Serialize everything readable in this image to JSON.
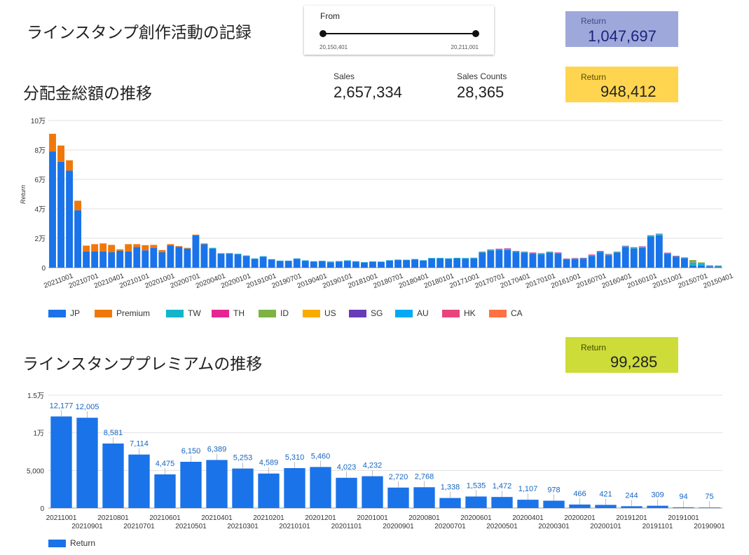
{
  "header": {
    "title": "ラインスタンプ創作活動の記録"
  },
  "date_slider": {
    "label": "From",
    "min_value": "20,150,401",
    "max_value": "20,211,001"
  },
  "return_total": {
    "label": "Return",
    "value": "1,047,697",
    "bg": "#9FA8DA"
  },
  "section1": {
    "title": "分配金総額の推移"
  },
  "sales": {
    "label": "Sales",
    "value": "2,657,334"
  },
  "sales_counts": {
    "label": "Sales Counts",
    "value": "28,365"
  },
  "return_sales": {
    "label": "Return",
    "value": "948,412",
    "bg": "#FFD54F"
  },
  "section2": {
    "title": "ラインスタンププレミアムの推移"
  },
  "return_premium": {
    "label": "Return",
    "value": "99,285",
    "bg": "#CDDC39"
  },
  "chart_data": [
    {
      "type": "bar",
      "stacked": true,
      "ylabel": "Return",
      "ylim": [
        0,
        100000
      ],
      "yticks": [
        "0",
        "2万",
        "4万",
        "6万",
        "8万",
        "10万"
      ],
      "grid": true,
      "legend_position": "bottom-left",
      "x_labels": [
        "20211001",
        "20210701",
        "20210401",
        "20210101",
        "20201001",
        "20200701",
        "20200401",
        "20200101",
        "20191001",
        "20190701",
        "20190401",
        "20190101",
        "20181001",
        "20180701",
        "20180401",
        "20180101",
        "20171001",
        "20170701",
        "20170401",
        "20170101",
        "20161001",
        "20160701",
        "20160401",
        "20160101",
        "20151001",
        "20150701",
        "20150401"
      ],
      "series": [
        {
          "name": "JP",
          "color": "#1A73E8",
          "values": [
            79000,
            72000,
            66000,
            39000,
            11000,
            11000,
            11000,
            10500,
            11500,
            11000,
            14000,
            11800,
            13500,
            10500,
            15000,
            14200,
            13000,
            22000,
            16000,
            13000,
            9500,
            9500,
            9000,
            8000,
            6000,
            7500,
            5500,
            4500,
            4500,
            6000,
            4700,
            4200,
            4300,
            3700,
            4200,
            4500,
            4100,
            3500,
            4000,
            3900,
            4800,
            5200,
            5000,
            5500,
            4800,
            6200,
            6300,
            6000,
            6200,
            6100,
            6300,
            10000,
            11500,
            12000,
            12000,
            10500,
            10000,
            9500,
            9000,
            10000,
            9500,
            5500,
            5800,
            6000,
            8000,
            10500,
            8500,
            10000,
            14000,
            13000,
            13500,
            21000,
            22000,
            9500,
            7500,
            6500,
            1500,
            1500,
            800,
            500
          ]
        },
        {
          "name": "Premium",
          "color": "#F0780A",
          "values": [
            12000,
            11000,
            7000,
            6500,
            4000,
            5000,
            5500,
            5000,
            1000,
            5000,
            2000,
            3500,
            2000,
            1500,
            1000,
            500,
            500,
            500,
            500,
            0,
            0,
            0,
            0,
            0,
            0,
            0,
            0,
            0,
            0,
            0,
            0,
            0,
            0,
            0,
            0,
            0,
            0,
            0,
            0,
            0,
            0,
            0,
            0,
            0,
            0,
            0,
            0,
            0,
            0,
            0,
            0,
            0,
            0,
            0,
            0,
            0,
            0,
            0,
            0,
            0,
            0,
            0,
            0,
            0,
            0,
            0,
            0,
            0,
            0,
            0,
            0,
            0,
            0,
            0,
            0,
            0,
            0,
            0,
            0,
            0
          ]
        },
        {
          "name": "TW",
          "color": "#12B5CB",
          "values": [
            0,
            0,
            0,
            0,
            0,
            0,
            0,
            0,
            0,
            0,
            0,
            0,
            0,
            0,
            0,
            0,
            0,
            0,
            0,
            500,
            300,
            400,
            500,
            300,
            300,
            300,
            300,
            300,
            300,
            300,
            300,
            200,
            400,
            500,
            300,
            500,
            300,
            300,
            300,
            300,
            300,
            300,
            400,
            400,
            300,
            400,
            400,
            400,
            500,
            500,
            500,
            600,
            600,
            600,
            600,
            600,
            600,
            500,
            500,
            600,
            600,
            400,
            400,
            400,
            500,
            600,
            500,
            600,
            600,
            600,
            700,
            700,
            800,
            400,
            300,
            300,
            2000,
            1500,
            300,
            500
          ]
        },
        {
          "name": "TH",
          "color": "#E52592",
          "values": [
            0,
            0,
            0,
            0,
            0,
            0,
            0,
            0,
            0,
            0,
            0,
            0,
            0,
            0,
            0,
            0,
            0,
            0,
            0,
            0,
            0,
            0,
            0,
            0,
            0,
            0,
            0,
            0,
            0,
            0,
            0,
            0,
            0,
            0,
            0,
            0,
            0,
            0,
            0,
            0,
            0,
            0,
            0,
            0,
            0,
            0,
            0,
            0,
            0,
            0,
            0,
            300,
            300,
            300,
            500,
            300,
            300,
            300,
            300,
            300,
            300,
            300,
            300,
            300,
            400,
            300,
            300,
            300,
            300,
            300,
            300,
            300,
            300,
            300,
            300,
            200,
            200,
            100,
            100,
            100
          ]
        },
        {
          "name": "ID",
          "color": "#7CB342",
          "values": [
            0,
            0,
            0,
            0,
            0,
            0,
            0,
            0,
            0,
            0,
            0,
            0,
            0,
            0,
            0,
            0,
            0,
            0,
            0,
            0,
            0,
            0,
            0,
            0,
            0,
            0,
            0,
            0,
            0,
            0,
            0,
            0,
            0,
            0,
            0,
            0,
            0,
            0,
            0,
            0,
            0,
            0,
            0,
            0,
            0,
            0,
            0,
            0,
            0,
            0,
            0,
            0,
            0,
            0,
            0,
            0,
            0,
            0,
            0,
            0,
            0,
            0,
            0,
            0,
            0,
            0,
            0,
            0,
            0,
            0,
            0,
            0,
            0,
            0,
            0,
            0,
            1500,
            500,
            0,
            0
          ]
        },
        {
          "name": "US",
          "color": "#F9AB00",
          "values": [
            0,
            0,
            0,
            0,
            0,
            0,
            0,
            0,
            0,
            0,
            0,
            0,
            0,
            0,
            0,
            0,
            0,
            0,
            0,
            0,
            0,
            0,
            0,
            0,
            0,
            0,
            0,
            0,
            0,
            0,
            0,
            0,
            0,
            0,
            0,
            0,
            0,
            0,
            0,
            0,
            0,
            0,
            0,
            0,
            0,
            0,
            0,
            0,
            0,
            0,
            0,
            0,
            0,
            0,
            0,
            0,
            0,
            0,
            0,
            0,
            0,
            0,
            0,
            0,
            0,
            0,
            0,
            0,
            0,
            0,
            0,
            0,
            0,
            0,
            0,
            0,
            0,
            0,
            0,
            0
          ]
        },
        {
          "name": "SG",
          "color": "#673AB7",
          "values": [
            0,
            0,
            0,
            0,
            0,
            0,
            0,
            0,
            0,
            0,
            0,
            0,
            0,
            0,
            0,
            0,
            0,
            0,
            0,
            0,
            0,
            0,
            0,
            0,
            0,
            0,
            0,
            0,
            0,
            0,
            0,
            0,
            0,
            0,
            0,
            0,
            0,
            0,
            0,
            0,
            0,
            0,
            0,
            0,
            0,
            0,
            0,
            0,
            0,
            0,
            0,
            0,
            0,
            0,
            0,
            0,
            0,
            0,
            0,
            0,
            0,
            0,
            0,
            0,
            0,
            0,
            0,
            0,
            0,
            0,
            0,
            0,
            0,
            0,
            0,
            0,
            0,
            0,
            300,
            300
          ]
        },
        {
          "name": "AU",
          "color": "#03A9F4",
          "values": [
            0,
            0,
            0,
            0,
            0,
            0,
            0,
            0,
            0,
            0,
            0,
            0,
            0,
            0,
            0,
            0,
            0,
            0,
            0,
            0,
            0,
            0,
            0,
            0,
            0,
            0,
            0,
            0,
            0,
            0,
            0,
            0,
            0,
            0,
            0,
            0,
            0,
            0,
            0,
            0,
            0,
            0,
            0,
            0,
            0,
            0,
            0,
            0,
            0,
            0,
            0,
            0,
            0,
            0,
            0,
            0,
            0,
            0,
            0,
            0,
            0,
            0,
            0,
            0,
            0,
            0,
            0,
            0,
            0,
            0,
            0,
            0,
            0,
            0,
            0,
            0,
            0,
            0,
            0,
            0
          ]
        },
        {
          "name": "HK",
          "color": "#E8457C",
          "values": [
            0,
            0,
            0,
            0,
            0,
            0,
            0,
            0,
            0,
            0,
            0,
            0,
            0,
            0,
            0,
            0,
            0,
            0,
            0,
            0,
            0,
            0,
            0,
            0,
            0,
            0,
            0,
            0,
            0,
            0,
            0,
            0,
            0,
            0,
            0,
            0,
            0,
            0,
            0,
            0,
            0,
            0,
            0,
            0,
            0,
            0,
            0,
            0,
            0,
            0,
            0,
            0,
            0,
            0,
            0,
            0,
            0,
            0,
            0,
            0,
            0,
            0,
            0,
            0,
            0,
            0,
            0,
            0,
            0,
            0,
            0,
            0,
            0,
            0,
            0,
            0,
            0,
            0,
            0,
            0
          ]
        },
        {
          "name": "CA",
          "color": "#FF7043",
          "values": [
            0,
            0,
            0,
            0,
            0,
            0,
            0,
            0,
            0,
            0,
            0,
            0,
            0,
            0,
            0,
            0,
            0,
            0,
            0,
            0,
            0,
            0,
            0,
            0,
            0,
            0,
            0,
            0,
            0,
            0,
            0,
            0,
            0,
            0,
            0,
            0,
            0,
            0,
            0,
            0,
            0,
            0,
            0,
            0,
            0,
            0,
            0,
            0,
            0,
            0,
            0,
            0,
            0,
            0,
            0,
            0,
            0,
            0,
            0,
            0,
            0,
            0,
            0,
            0,
            0,
            0,
            0,
            0,
            0,
            0,
            0,
            0,
            0,
            0,
            0,
            0,
            0,
            0,
            0,
            0
          ]
        }
      ]
    },
    {
      "type": "bar",
      "ylim": [
        0,
        15000
      ],
      "yticks": [
        "0",
        "5,000",
        "1万",
        "1.5万"
      ],
      "grid": true,
      "legend_position": "bottom-left",
      "categories": [
        "20211001",
        "20210901",
        "20210801",
        "20210701",
        "20210601",
        "20210501",
        "20210401",
        "20210301",
        "20210201",
        "20210101",
        "20201201",
        "20201101",
        "20201001",
        "20200901",
        "20200801",
        "20200701",
        "20200601",
        "20200501",
        "20200401",
        "20200301",
        "20200201",
        "20200101",
        "20191201",
        "20191101",
        "20191001",
        "20190901"
      ],
      "series": [
        {
          "name": "Return",
          "color": "#1A73E8",
          "values": [
            12177,
            12005,
            8581,
            7114,
            4475,
            6150,
            6389,
            5253,
            4589,
            5310,
            5460,
            4023,
            4232,
            2720,
            2768,
            1338,
            1535,
            1472,
            1107,
            978,
            466,
            421,
            244,
            309,
            94,
            75
          ],
          "labels": [
            "12,177",
            "12,005",
            "8,581",
            "7,114",
            "4,475",
            "6,150",
            "6,389",
            "5,253",
            "4,589",
            "5,310",
            "5,460",
            "4,023",
            "4,232",
            "2,720",
            "2,768",
            "1,338",
            "1,535",
            "1,472",
            "1,107",
            "978",
            "466",
            "421",
            "244",
            "309",
            "94",
            "75"
          ]
        }
      ]
    }
  ]
}
